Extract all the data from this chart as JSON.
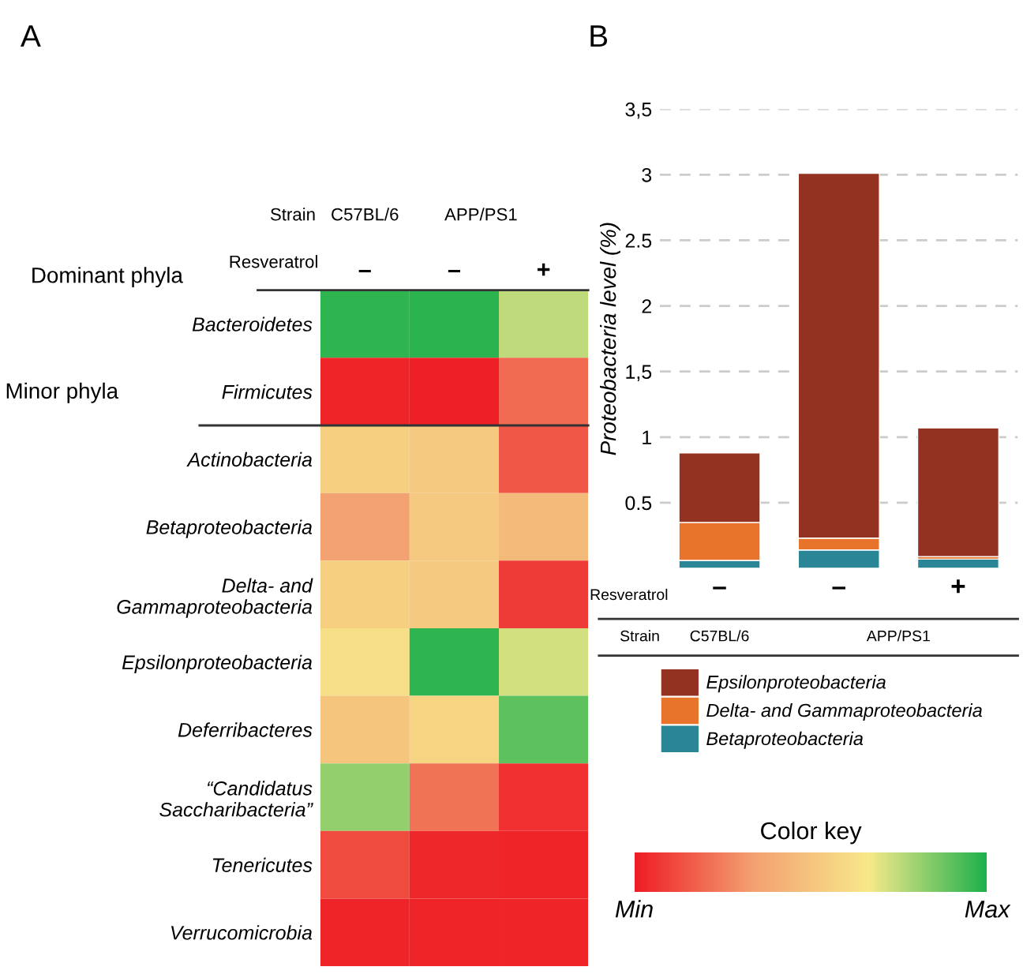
{
  "chart_data": [
    {
      "type": "heatmap",
      "title": "A",
      "categories": [
        "–",
        "–",
        "+"
      ],
      "y_categories": [
        "Bacteroidetes",
        "Firmicutes",
        "Actinobacteria",
        "Betaproteobacteria",
        "Delta- and\nGammaproteobacteria",
        "Epsilonproteobacteria",
        "Deferribacteres",
        "“Candidatus\nSaccharibacteria”",
        "Tenericutes",
        "Verrucomicrobia"
      ],
      "cells": [
        [
          0.97,
          0.98,
          0.75
        ],
        [
          0.02,
          0.01,
          0.2
        ],
        [
          0.55,
          0.52,
          0.15
        ],
        [
          0.35,
          0.52,
          0.45
        ],
        [
          0.55,
          0.52,
          0.08
        ],
        [
          0.62,
          0.97,
          0.72
        ],
        [
          0.5,
          0.57,
          0.9
        ],
        [
          0.82,
          0.22,
          0.05
        ],
        [
          0.12,
          0.03,
          0.02
        ],
        [
          0.02,
          0.02,
          0.02
        ]
      ],
      "clim": [
        0,
        1
      ],
      "cticks": [
        {
          "value": 0,
          "label": "Min"
        },
        {
          "value": 1,
          "label": "Max"
        }
      ],
      "clabel": "Color key",
      "annotations": [
        "Strain",
        "Resveratrol",
        "C57BL/6",
        "APP/PS1",
        "Dominant phyla",
        "Minor phyla"
      ]
    },
    {
      "type": "bar",
      "title": "B",
      "stacked": true,
      "categories": [
        "–",
        "–",
        "+"
      ],
      "series": [
        {
          "name": "Betaproteobacteria",
          "color": "#2a8597",
          "values": [
            0.06,
            0.14,
            0.07
          ]
        },
        {
          "name": "Delta- and Gammaproteobacteria",
          "color": "#e8732a",
          "values": [
            0.29,
            0.09,
            0.02
          ]
        },
        {
          "name": "Epsilonproteobacteria",
          "color": "#943222",
          "values": [
            0.53,
            2.78,
            0.98
          ]
        }
      ],
      "ylabel": "Proteobacteria level (%)",
      "ylim": [
        0,
        3.5
      ],
      "yticks": [
        {
          "value": 0.5,
          "label": "0.5"
        },
        1,
        {
          "value": 1.5,
          "label": "1,5"
        },
        2,
        2.5,
        3,
        {
          "value": 3.5,
          "label": "3,5"
        }
      ],
      "grid": "y",
      "legend": "bottom",
      "annotations": [
        "Resveratrol",
        "Strain",
        "C57BL/6",
        "APP/PS1"
      ]
    }
  ]
}
